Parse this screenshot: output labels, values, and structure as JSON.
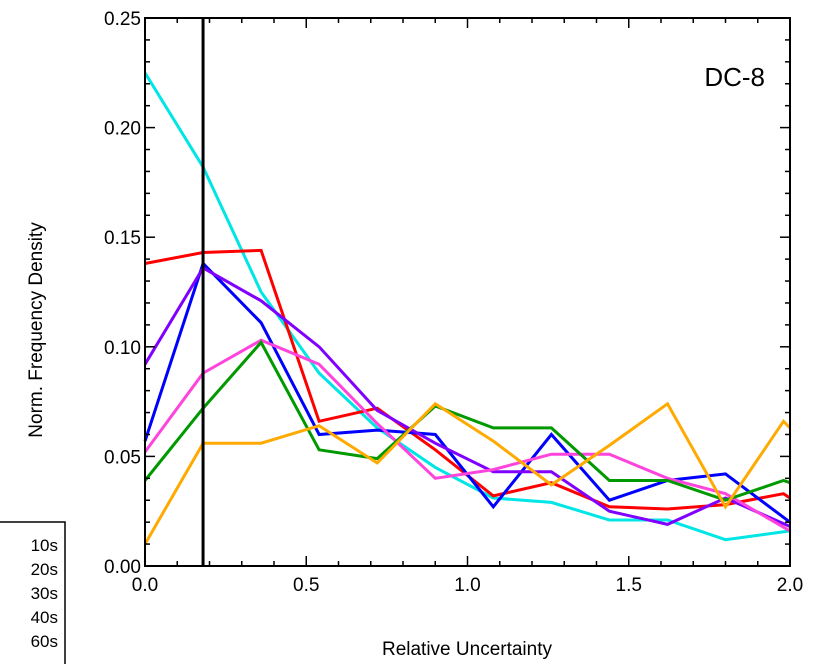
{
  "chart_data": {
    "type": "line",
    "title": "",
    "annotation": "DC-8",
    "xlabel": "Relative Uncertainty",
    "ylabel": "Norm. Frequency Density",
    "xlim": [
      0.0,
      2.0
    ],
    "ylim": [
      0.0,
      0.25
    ],
    "xticks": [
      "0.0",
      "0.5",
      "1.0",
      "1.5",
      "2.0"
    ],
    "yticks": [
      "0.00",
      "0.05",
      "0.10",
      "0.15",
      "0.20",
      "0.25"
    ],
    "xtick_values": [
      0.0,
      0.5,
      1.0,
      1.5,
      2.0
    ],
    "ytick_values": [
      0.0,
      0.05,
      0.1,
      0.15,
      0.2,
      0.25
    ],
    "vertical_line_x": 0.18,
    "grid": false,
    "legend_placement": "bottom-left",
    "legend_entries": [
      "10s",
      "20s",
      "30s",
      "40s",
      "60s"
    ],
    "series": [
      {
        "color": "#00e5e5",
        "x": [
          0.0,
          0.18,
          0.36,
          0.54,
          0.72,
          0.9,
          1.08,
          1.26,
          1.44,
          1.62,
          1.8,
          2.0
        ],
        "y": [
          0.225,
          0.182,
          0.125,
          0.088,
          0.063,
          0.045,
          0.031,
          0.029,
          0.021,
          0.021,
          0.012,
          0.016
        ]
      },
      {
        "color": "#ff0000",
        "x": [
          0.0,
          0.18,
          0.36,
          0.54,
          0.72,
          0.9,
          1.08,
          1.26,
          1.44,
          1.62,
          1.8,
          1.98,
          2.0
        ],
        "y": [
          0.138,
          0.143,
          0.144,
          0.066,
          0.072,
          0.053,
          0.032,
          0.038,
          0.027,
          0.026,
          0.028,
          0.033,
          0.031
        ]
      },
      {
        "color": "#0000ff",
        "x": [
          0.0,
          0.18,
          0.36,
          0.54,
          0.72,
          0.9,
          1.08,
          1.26,
          1.44,
          1.62,
          1.8,
          2.0
        ],
        "y": [
          0.057,
          0.138,
          0.111,
          0.06,
          0.062,
          0.06,
          0.027,
          0.06,
          0.03,
          0.039,
          0.042,
          0.02
        ]
      },
      {
        "color": "#8000ff",
        "x": [
          0.0,
          0.18,
          0.36,
          0.54,
          0.72,
          0.9,
          1.08,
          1.26,
          1.44,
          1.62,
          1.8,
          2.0
        ],
        "y": [
          0.092,
          0.136,
          0.121,
          0.1,
          0.071,
          0.056,
          0.043,
          0.043,
          0.025,
          0.019,
          0.031,
          0.018
        ]
      },
      {
        "color": "#ff44dd",
        "x": [
          0.0,
          0.18,
          0.36,
          0.54,
          0.72,
          0.9,
          1.08,
          1.26,
          1.44,
          1.62,
          1.8,
          2.0
        ],
        "y": [
          0.052,
          0.088,
          0.103,
          0.092,
          0.065,
          0.04,
          0.044,
          0.051,
          0.051,
          0.04,
          0.033,
          0.016
        ]
      },
      {
        "color": "#009900",
        "x": [
          0.0,
          0.18,
          0.36,
          0.54,
          0.72,
          0.9,
          1.08,
          1.26,
          1.44,
          1.62,
          1.8,
          1.98,
          2.0
        ],
        "y": [
          0.039,
          0.072,
          0.102,
          0.053,
          0.049,
          0.073,
          0.063,
          0.063,
          0.039,
          0.039,
          0.03,
          0.039,
          0.038
        ]
      },
      {
        "color": "#ffaa00",
        "x": [
          0.0,
          0.18,
          0.36,
          0.54,
          0.72,
          0.9,
          1.08,
          1.26,
          1.44,
          1.62,
          1.8,
          1.98,
          2.0
        ],
        "y": [
          0.01,
          0.056,
          0.056,
          0.064,
          0.047,
          0.074,
          0.057,
          0.037,
          0.055,
          0.074,
          0.027,
          0.066,
          0.063
        ]
      }
    ]
  }
}
